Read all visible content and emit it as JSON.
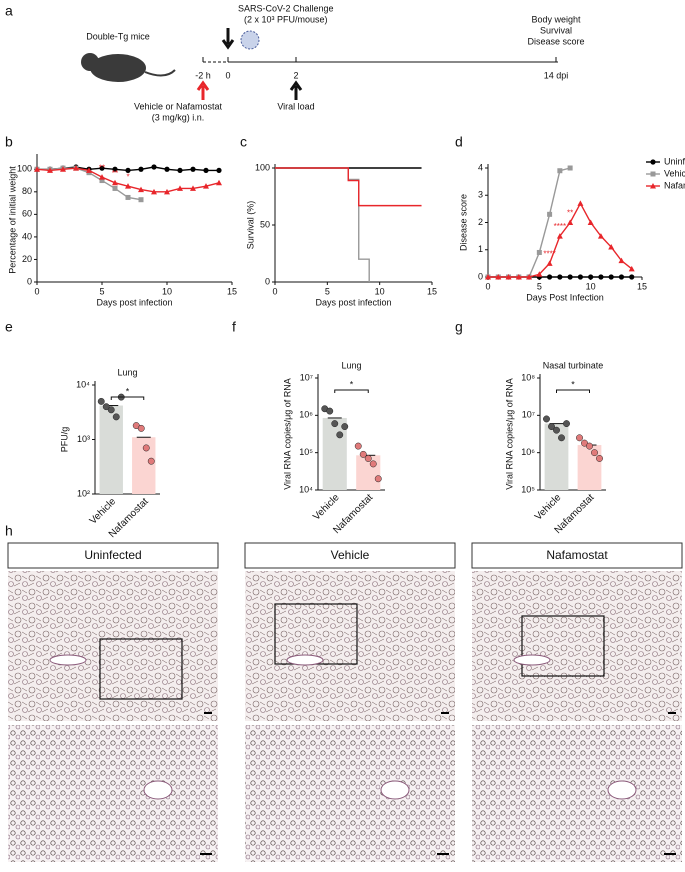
{
  "panel_labels": [
    "a",
    "b",
    "c",
    "d",
    "e",
    "f",
    "g",
    "h"
  ],
  "schematic": {
    "mice": "Double-Tg mice",
    "challenge": "SARS-CoV-2 Challenge",
    "dose": "(2 x 10³ PFU/mouse)",
    "timepoints": [
      "-2 h",
      "0",
      "2",
      "14 dpi"
    ],
    "readouts": [
      "Body weight",
      "Survival",
      "Disease score"
    ],
    "treatment": "Vehicle or Nafamostat",
    "treatment_dose": "(3 mg/kg) i.n.",
    "viral_load": "Viral load"
  },
  "chart_data": [
    {
      "type": "line",
      "x_label": "Days post infection",
      "y_label": "Percentage of initial weight",
      "x": [
        0,
        1,
        2,
        3,
        4,
        5,
        6,
        7,
        8,
        9,
        10,
        11,
        12,
        13,
        14
      ],
      "xlim": [
        0,
        15
      ],
      "xticks": [
        0,
        5,
        10,
        15
      ],
      "ylim": [
        0,
        110
      ],
      "yticks": [
        0,
        20,
        40,
        60,
        80,
        100
      ],
      "series": [
        {
          "name": "Uninfected",
          "color": "#000000",
          "marker": "circle",
          "values": [
            100,
            100,
            101,
            102,
            100,
            101,
            100,
            99,
            100,
            102,
            100,
            99,
            100,
            99,
            99
          ]
        },
        {
          "name": "Vehicle",
          "color": "#999999",
          "marker": "square",
          "values": [
            100,
            100,
            101,
            101,
            97,
            90,
            83,
            75,
            73,
            null,
            null,
            null,
            null,
            null,
            null
          ]
        },
        {
          "name": "Nafamostat",
          "color": "#e8262b",
          "marker": "triangle",
          "values": [
            100,
            99,
            100,
            101,
            99,
            93,
            88,
            85,
            82,
            80,
            80,
            83,
            83,
            85,
            88
          ]
        }
      ],
      "annotations": [
        {
          "text": "**",
          "x": 5
        },
        {
          "text": "**",
          "x": 6
        },
        {
          "text": "*",
          "x": 7
        }
      ]
    },
    {
      "type": "line",
      "step": true,
      "x_label": "Days post infection",
      "y_label": "Survival (%)",
      "x": [
        0,
        1,
        2,
        3,
        4,
        5,
        6,
        7,
        8,
        9,
        10,
        11,
        12,
        13,
        14
      ],
      "xlim": [
        0,
        15
      ],
      "xticks": [
        0,
        5,
        10,
        15
      ],
      "ylim": [
        0,
        100
      ],
      "yticks": [
        0,
        50,
        100
      ],
      "series": [
        {
          "name": "Uninfected",
          "color": "#000000",
          "values": [
            100,
            100,
            100,
            100,
            100,
            100,
            100,
            100,
            100,
            100,
            100,
            100,
            100,
            100,
            100
          ]
        },
        {
          "name": "Vehicle",
          "color": "#999999",
          "values": [
            100,
            100,
            100,
            100,
            100,
            100,
            100,
            90,
            20,
            0,
            null,
            null,
            null,
            null,
            null
          ]
        },
        {
          "name": "Nafamostat",
          "color": "#e8262b",
          "values": [
            100,
            100,
            100,
            100,
            100,
            100,
            100,
            89,
            67,
            67,
            67,
            67,
            67,
            67,
            67
          ]
        }
      ]
    },
    {
      "type": "line",
      "x_label": "Days Post Infection",
      "y_label": "Disease score",
      "legend": "top-right",
      "x": [
        0,
        1,
        2,
        3,
        4,
        5,
        6,
        7,
        8,
        9,
        10,
        11,
        12,
        13,
        14
      ],
      "xlim": [
        0,
        15
      ],
      "xticks": [
        0,
        5,
        10,
        15
      ],
      "ylim": [
        0,
        4
      ],
      "yticks": [
        0,
        1,
        2,
        3,
        4
      ],
      "series": [
        {
          "name": "Uninfected",
          "color": "#000000",
          "marker": "circle",
          "values": [
            0,
            0,
            0,
            0,
            0,
            0,
            0,
            0,
            0,
            0,
            0,
            0,
            0,
            0,
            0
          ]
        },
        {
          "name": "Vehicle",
          "color": "#999999",
          "marker": "square",
          "values": [
            0,
            0,
            0,
            0,
            0,
            0.9,
            2.3,
            3.9,
            4.0,
            null,
            null,
            null,
            null,
            null,
            null
          ]
        },
        {
          "name": "Nafamostat",
          "color": "#e8262b",
          "marker": "triangle",
          "values": [
            0,
            0,
            0,
            0,
            0,
            0.1,
            0.5,
            1.5,
            2.0,
            2.7,
            2.0,
            1.5,
            1.1,
            0.6,
            0.3
          ]
        }
      ],
      "annotations": [
        {
          "text": "****",
          "x": 6
        },
        {
          "text": "****",
          "x": 7
        },
        {
          "text": "**",
          "x": 8
        }
      ]
    },
    {
      "type": "bar",
      "title": "Lung",
      "y_label": "PFU/g",
      "log_scale": true,
      "significance": "*",
      "categories": [
        "Vehicle",
        "Nafamostat"
      ],
      "values": [
        4200,
        1100
      ],
      "colors": [
        "#d9dcd8",
        "#fbd5d2"
      ],
      "point_colors": [
        "#555555",
        "#e07a7a"
      ],
      "points": [
        [
          5000,
          4000,
          3500,
          2600,
          6000
        ],
        [
          1800,
          1600,
          700,
          400
        ]
      ],
      "ylim": [
        100,
        10000
      ],
      "yticks": [
        {
          "value": 100,
          "label": "10²"
        },
        {
          "value": 1000,
          "label": "10³"
        },
        {
          "value": 10000,
          "label": "10⁴"
        }
      ]
    },
    {
      "type": "bar",
      "title": "Lung",
      "y_label": "Viral RNA copies/μg of RNA",
      "log_scale": true,
      "significance": "*",
      "categories": [
        "Vehicle",
        "Nafamostat"
      ],
      "values": [
        850000,
        85000
      ],
      "colors": [
        "#d9dcd8",
        "#fbd5d2"
      ],
      "point_colors": [
        "#555555",
        "#e07a7a"
      ],
      "points": [
        [
          1500000,
          1300000,
          600000,
          300000,
          500000
        ],
        [
          150000,
          90000,
          70000,
          50000,
          20000
        ]
      ],
      "ylim": [
        10000,
        10000000
      ],
      "yticks": [
        {
          "value": 10000,
          "label": "10⁴"
        },
        {
          "value": 100000,
          "label": "10⁵"
        },
        {
          "value": 1000000,
          "label": "10⁶"
        },
        {
          "value": 10000000,
          "label": "10⁷"
        }
      ]
    },
    {
      "type": "bar",
      "title": "Nasal turbinate",
      "y_label": "Viral RNA copies/μg of RNA",
      "log_scale": true,
      "significance": "*",
      "categories": [
        "Vehicle",
        "Nafamostat"
      ],
      "values": [
        6000000,
        1600000
      ],
      "colors": [
        "#d9dcd8",
        "#fbd5d2"
      ],
      "point_colors": [
        "#555555",
        "#e07a7a"
      ],
      "points": [
        [
          8000000,
          5000000,
          4000000,
          2500000,
          6000000
        ],
        [
          2500000,
          1800000,
          1500000,
          1000000,
          700000
        ]
      ],
      "ylim": [
        100000,
        100000000
      ],
      "yticks": [
        {
          "value": 100000,
          "label": "10⁵"
        },
        {
          "value": 1000000,
          "label": "10⁶"
        },
        {
          "value": 10000000,
          "label": "10⁷"
        },
        {
          "value": 100000000,
          "label": "10⁸"
        }
      ]
    }
  ],
  "histology": {
    "titles": [
      "Uninfected",
      "Vehicle",
      "Nafamostat"
    ]
  }
}
